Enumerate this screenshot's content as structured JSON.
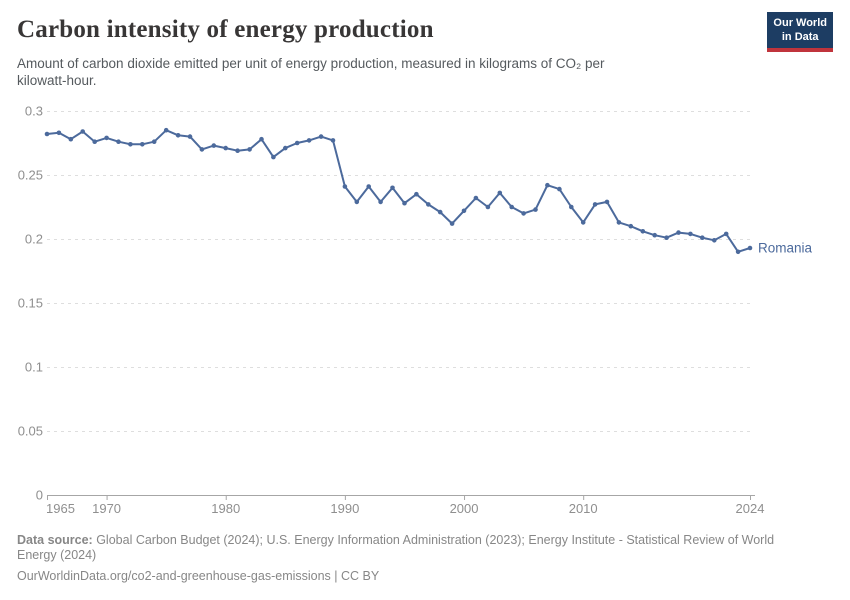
{
  "header": {
    "title": "Carbon intensity of energy production",
    "subtitle_lines": [
      "Amount of carbon dioxide emitted per unit of energy production, measured in kilograms of CO₂ per",
      "kilowatt-hour."
    ]
  },
  "logo": {
    "line1": "Our World",
    "line2": "in Data",
    "bg_color": "#1d3d63",
    "stripe_color": "#c0343c"
  },
  "footer": {
    "source_label": "Data source:",
    "source_rest": " Global Carbon Budget (2024); U.S. Energy Information Administration (2023); Energy Institute - Statistical Review of World",
    "source_line2": "Energy (2024)",
    "url_line": "OurWorldinData.org/co2-and-greenhouse-gas-emissions | CC BY"
  },
  "chart_data": {
    "type": "line",
    "title": "Carbon intensity of energy production",
    "xlabel": "",
    "ylabel": "kilograms of CO₂ per kilowatt-hour",
    "ylim": [
      0,
      0.3
    ],
    "x_range": [
      1965,
      2024
    ],
    "grid": "horizontal dashed gridlines on",
    "legend_position": "label at end of line",
    "axis_color": "#a6a6a6",
    "gridline_color": "#dedede",
    "tick_label_color": "#8f8f8f",
    "y_ticks": [
      {
        "v": 0,
        "label": "0"
      },
      {
        "v": 0.05,
        "label": "0.05"
      },
      {
        "v": 0.1,
        "label": "0.1"
      },
      {
        "v": 0.15,
        "label": "0.15"
      },
      {
        "v": 0.2,
        "label": "0.2"
      },
      {
        "v": 0.25,
        "label": "0.25"
      },
      {
        "v": 0.3,
        "label": "0.3"
      }
    ],
    "x_ticks": [
      1965,
      1970,
      1980,
      1990,
      2000,
      2010,
      2024
    ],
    "series": [
      {
        "name": "Romania",
        "color": "#4C6A9C",
        "years": [
          1965,
          1966,
          1967,
          1968,
          1969,
          1970,
          1971,
          1972,
          1973,
          1974,
          1975,
          1976,
          1977,
          1978,
          1979,
          1980,
          1981,
          1982,
          1983,
          1984,
          1985,
          1986,
          1987,
          1988,
          1989,
          1990,
          1991,
          1992,
          1993,
          1994,
          1995,
          1996,
          1997,
          1998,
          1999,
          2000,
          2001,
          2002,
          2003,
          2004,
          2005,
          2006,
          2007,
          2008,
          2009,
          2010,
          2011,
          2012,
          2013,
          2014,
          2015,
          2016,
          2017,
          2018,
          2019,
          2020,
          2021,
          2022,
          2023,
          2024
        ],
        "values": [
          0.282,
          0.283,
          0.278,
          0.284,
          0.276,
          0.279,
          0.276,
          0.274,
          0.274,
          0.276,
          0.285,
          0.281,
          0.28,
          0.27,
          0.273,
          0.271,
          0.269,
          0.27,
          0.278,
          0.264,
          0.271,
          0.275,
          0.277,
          0.28,
          0.277,
          0.241,
          0.229,
          0.241,
          0.229,
          0.24,
          0.228,
          0.235,
          0.227,
          0.221,
          0.212,
          0.222,
          0.232,
          0.225,
          0.236,
          0.225,
          0.22,
          0.223,
          0.242,
          0.239,
          0.225,
          0.213,
          0.227,
          0.229,
          0.213,
          0.21,
          0.206,
          0.203,
          0.201,
          0.205,
          0.204,
          0.201,
          0.199,
          0.204,
          0.19,
          0.193
        ]
      }
    ]
  }
}
